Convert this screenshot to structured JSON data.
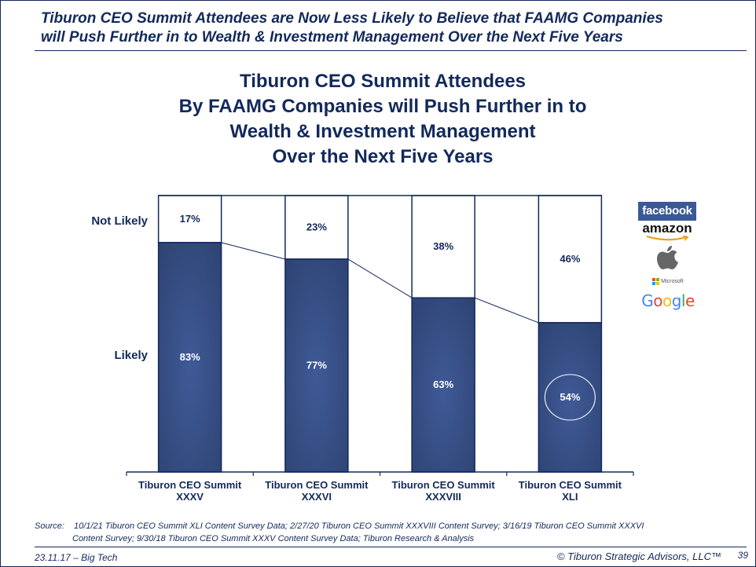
{
  "slide": {
    "title_line1": "Tiburon CEO Summit Attendees are Now Less Likely to Believe that FAAMG Companies",
    "title_line2": "will Push Further in to Wealth & Investment  Management Over the Next Five Years"
  },
  "chart_title_lines": [
    "Tiburon CEO Summit Attendees",
    "By FAAMG Companies will Push Further in to",
    "Wealth & Investment Management",
    "Over the Next Five Years"
  ],
  "logos": {
    "facebook": "facebook",
    "amazon": "amazon",
    "apple": "apple-logo-icon",
    "microsoft": "Microsoft",
    "google": [
      "G",
      "o",
      "o",
      "g",
      "l",
      "e"
    ],
    "google_colors": [
      "#4285f4",
      "#ea4335",
      "#fbbc05",
      "#4285f4",
      "#34a853",
      "#ea4335"
    ]
  },
  "chart_data": {
    "type": "bar",
    "stacked": true,
    "percent_stacked": true,
    "title": "Tiburon CEO Summit Attendees By FAAMG Companies will Push Further in to Wealth & Investment Management Over the Next Five Years",
    "categories": [
      [
        "Tiburon CEO Summit",
        "XXXV"
      ],
      [
        "Tiburon CEO Summit",
        "XXXVI"
      ],
      [
        "Tiburon CEO Summit",
        "XXXVIII"
      ],
      [
        "Tiburon CEO Summit",
        "XLI"
      ]
    ],
    "series": [
      {
        "name": "Likely",
        "values": [
          83,
          77,
          63,
          54
        ],
        "labels": [
          "83%",
          "77%",
          "63%",
          "54%"
        ],
        "color": "#34497c"
      },
      {
        "name": "Not Likely",
        "values": [
          17,
          23,
          38,
          46
        ],
        "labels": [
          "17%",
          "23%",
          "38%",
          "46%"
        ],
        "color": "#ffffff"
      }
    ],
    "row_labels": [
      "Not Likely",
      "Likely"
    ],
    "ylim": [
      0,
      100
    ],
    "series_lines": true,
    "highlight": {
      "category_index": 3,
      "series": "Likely",
      "style": "circle"
    },
    "legend": "none",
    "grid": false
  },
  "footer": {
    "source_label": "Source:",
    "source_line1": "10/1/21 Tiburon CEO Summit XLI Content Survey Data; 2/27/20 Tiburon CEO Summit XXXVIII Content Survey; 3/16/19 Tiburon CEO Summit XXXVI",
    "source_line2": "Content Survey; 9/30/18 Tiburon CEO Summit XXXV Content Survey Data; Tiburon Research & Analysis",
    "date_topic": "23.11.17 – Big Tech",
    "copyright": "© Tiburon Strategic Advisors, LLC™",
    "page_number": "39"
  }
}
